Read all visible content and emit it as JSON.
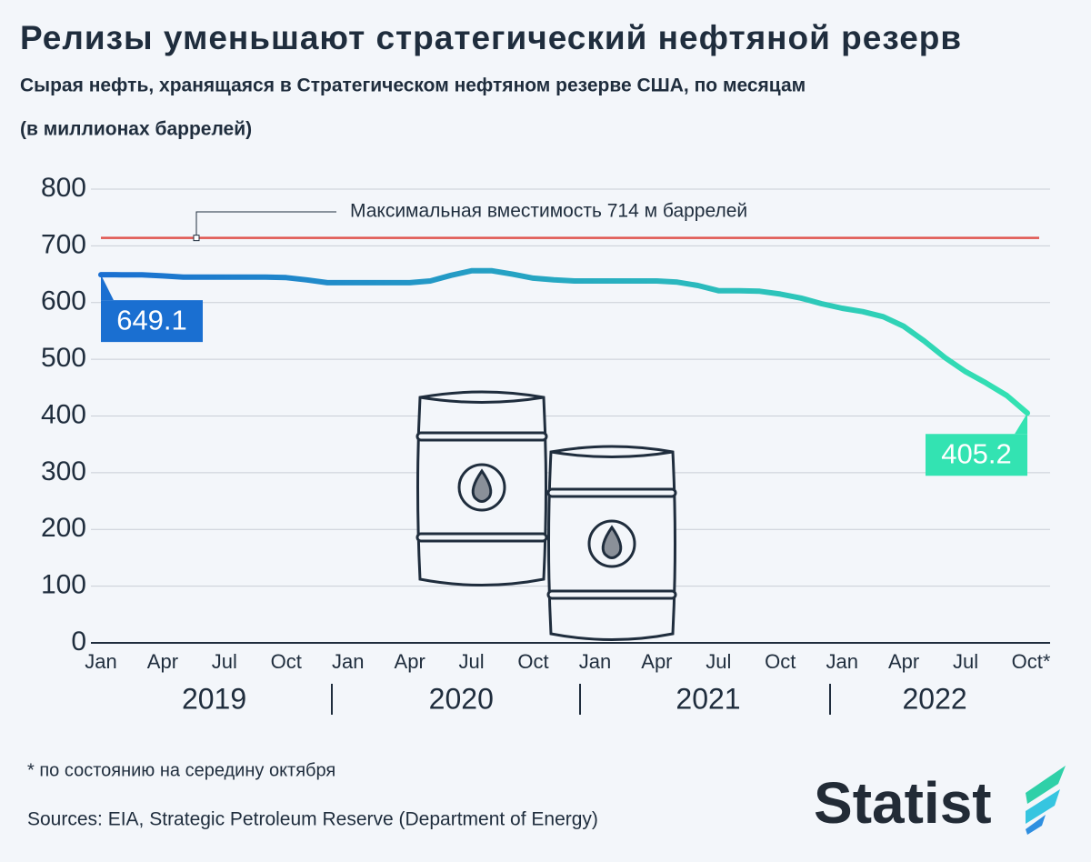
{
  "chart_data": {
    "type": "line",
    "title": "Релизы уменьшают стратегический нефтяной резерв",
    "subtitle": "Сырая нефть, хранящаяся в Стратегическом нефтяном резерве США, по месяцам",
    "unit_note": "(в миллионах баррелей)",
    "categories": [
      "Jan",
      null,
      null,
      "Apr",
      null,
      null,
      "Jul",
      null,
      null,
      "Oct",
      null,
      null,
      "Jan",
      null,
      null,
      "Apr",
      null,
      null,
      "Jul",
      null,
      null,
      "Oct",
      null,
      null,
      "Jan",
      null,
      null,
      "Apr",
      null,
      null,
      "Jul",
      null,
      null,
      "Oct",
      null,
      null,
      "Jan",
      null,
      null,
      "Apr",
      null,
      null,
      "Jul",
      null,
      null,
      "Oct*"
    ],
    "year_labels": [
      "2019",
      "2020",
      "2021",
      "2022"
    ],
    "series": [
      {
        "colors": [
          "#1a6fd1",
          "#33e3b2"
        ],
        "values": [
          649.1,
          649,
          649,
          647,
          645,
          645,
          645,
          645,
          645,
          644,
          640,
          635,
          635,
          635,
          635,
          635,
          638,
          648,
          656,
          656,
          650,
          643,
          640,
          638,
          638,
          638,
          638,
          638,
          636,
          630,
          621,
          621,
          620,
          615,
          608,
          598,
          590,
          584,
          575,
          558,
          532,
          503,
          478,
          458,
          436,
          405.2
        ],
        "value_labels": {
          "0": "649.1",
          "45": "405.2"
        }
      }
    ],
    "reference_line": {
      "value": 714,
      "label": "Максимальная вместимость 714 м баррелей",
      "color": "#e0554f"
    },
    "ylim": [
      0,
      800
    ],
    "yticks": [
      0,
      100,
      200,
      300,
      400,
      500,
      600,
      700,
      800
    ],
    "grid": true,
    "footnote": "* по состоянию на середину октября",
    "source": "Sources: EIA, Strategic Petroleum Reserve (Department of Energy)",
    "brand": "Statist"
  }
}
